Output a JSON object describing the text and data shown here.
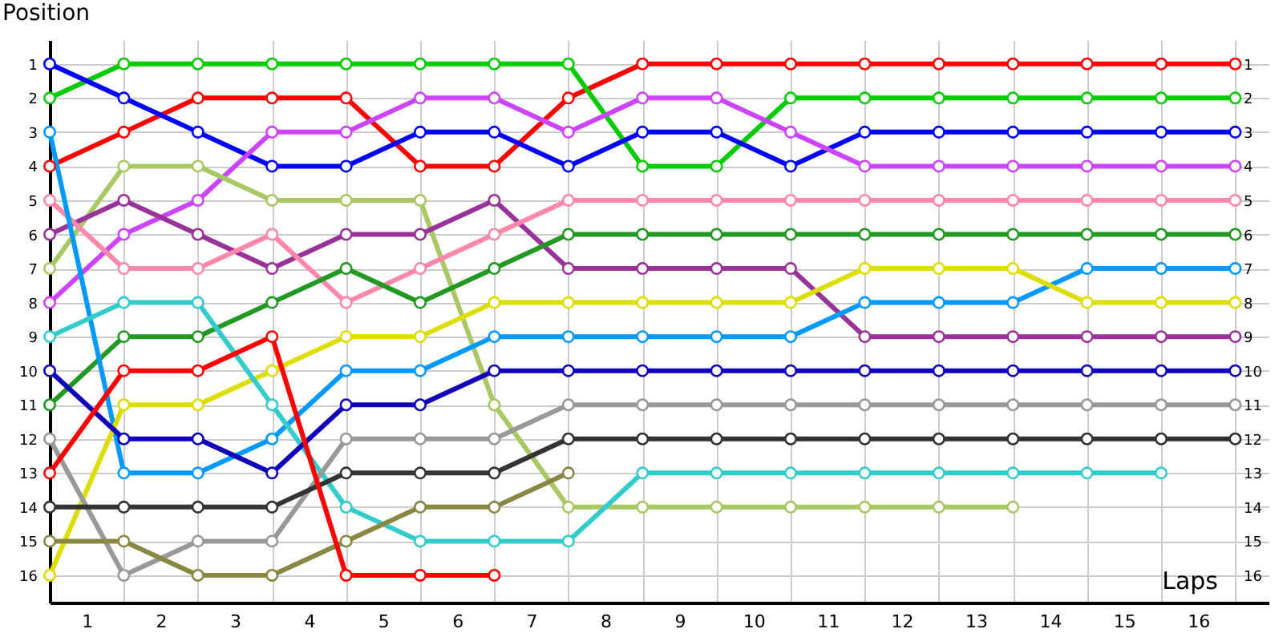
{
  "chart_data": {
    "type": "line",
    "xlabel": "Laps",
    "ylabel": "Position",
    "x": [
      0,
      1,
      2,
      3,
      4,
      5,
      6,
      7,
      8,
      9,
      10,
      11,
      12,
      13,
      14,
      15,
      16
    ],
    "xlim": [
      0,
      16.45
    ],
    "xticks": [
      {
        "value": 0,
        "label": null
      },
      {
        "value": 0.5,
        "label": "1"
      },
      {
        "value": 1,
        "label": null
      },
      {
        "value": 1.5,
        "label": "2"
      },
      {
        "value": 2,
        "label": null
      },
      {
        "value": 2.5,
        "label": "3"
      },
      {
        "value": 3,
        "label": null
      },
      {
        "value": 3.5,
        "label": "4"
      },
      {
        "value": 4,
        "label": null
      },
      {
        "value": 4.5,
        "label": "5"
      },
      {
        "value": 5,
        "label": null
      },
      {
        "value": 5.5,
        "label": "6"
      },
      {
        "value": 6,
        "label": null
      },
      {
        "value": 6.5,
        "label": "7"
      },
      {
        "value": 7,
        "label": null
      },
      {
        "value": 7.5,
        "label": "8"
      },
      {
        "value": 8,
        "label": null
      },
      {
        "value": 8.5,
        "label": "9"
      },
      {
        "value": 9,
        "label": null
      },
      {
        "value": 9.5,
        "label": "10"
      },
      {
        "value": 10,
        "label": null
      },
      {
        "value": 10.5,
        "label": "11"
      },
      {
        "value": 11,
        "label": null
      },
      {
        "value": 11.5,
        "label": "12"
      },
      {
        "value": 12,
        "label": null
      },
      {
        "value": 12.5,
        "label": "13"
      },
      {
        "value": 13,
        "label": null
      },
      {
        "value": 13.5,
        "label": "14"
      },
      {
        "value": 14,
        "label": null
      },
      {
        "value": 14.5,
        "label": "15"
      },
      {
        "value": 15,
        "label": null
      },
      {
        "value": 15.5,
        "label": "16"
      },
      {
        "value": 16,
        "label": null
      }
    ],
    "ylim": [
      16.8,
      0.3
    ],
    "yticks": [
      1,
      2,
      3,
      4,
      5,
      6,
      7,
      8,
      9,
      10,
      11,
      12,
      13,
      14,
      15,
      16
    ],
    "y2lim": [
      16.8,
      0.3
    ],
    "y2ticks": [
      1,
      2,
      3,
      4,
      5,
      6,
      7,
      8,
      9,
      10,
      11,
      12,
      13,
      14,
      15,
      16
    ],
    "grid": true,
    "marker": "circle",
    "line_style": "solid",
    "series": [
      {
        "color": "#ff0000",
        "values": [
          4,
          3,
          2,
          2,
          2,
          4,
          4,
          2,
          1,
          1,
          1,
          1,
          1,
          1,
          1,
          1,
          1
        ]
      },
      {
        "color": "#00cc00",
        "values": [
          2,
          1,
          1,
          1,
          1,
          1,
          1,
          1,
          4,
          4,
          2,
          2,
          2,
          2,
          2,
          2,
          2
        ]
      },
      {
        "color": "#0000ff",
        "values": [
          1,
          2,
          3,
          4,
          4,
          3,
          3,
          4,
          3,
          3,
          4,
          3,
          3,
          3,
          3,
          3,
          3
        ]
      },
      {
        "color": "#cc44ff",
        "values": [
          8,
          6,
          5,
          3,
          3,
          2,
          2,
          3,
          2,
          2,
          3,
          4,
          4,
          4,
          4,
          4,
          4
        ]
      },
      {
        "color": "#a8c864",
        "values": [
          7,
          4,
          4,
          5,
          5,
          5,
          11,
          14,
          14,
          14,
          14,
          14,
          14,
          14,
          null,
          null,
          null
        ]
      },
      {
        "color": "#993399",
        "values": [
          6,
          5,
          6,
          7,
          6,
          6,
          5,
          7,
          7,
          7,
          7,
          9,
          9,
          9,
          9,
          9,
          9
        ]
      },
      {
        "color": "#ff88aa",
        "values": [
          5,
          7,
          7,
          6,
          8,
          7,
          6,
          5,
          5,
          5,
          5,
          5,
          5,
          5,
          5,
          5,
          5
        ]
      },
      {
        "color": "#229922",
        "values": [
          11,
          9,
          9,
          8,
          7,
          8,
          7,
          6,
          6,
          6,
          6,
          6,
          6,
          6,
          6,
          6,
          6
        ]
      },
      {
        "color": "#0099ff",
        "values": [
          3,
          13,
          13,
          12,
          10,
          10,
          9,
          9,
          9,
          9,
          9,
          8,
          8,
          8,
          7,
          7,
          7
        ]
      },
      {
        "color": "#dddd00",
        "values": [
          16,
          11,
          11,
          10,
          9,
          9,
          8,
          8,
          8,
          8,
          8,
          7,
          7,
          7,
          8,
          8,
          8
        ]
      },
      {
        "color": "#33cccc",
        "values": [
          9,
          8,
          8,
          11,
          14,
          15,
          15,
          15,
          13,
          13,
          13,
          13,
          13,
          13,
          13,
          13,
          null
        ]
      },
      {
        "color": "#1100bb",
        "values": [
          10,
          12,
          12,
          13,
          11,
          11,
          10,
          10,
          10,
          10,
          10,
          10,
          10,
          10,
          10,
          10,
          10
        ]
      },
      {
        "color": "#999999",
        "values": [
          12,
          16,
          15,
          15,
          12,
          12,
          12,
          11,
          11,
          11,
          11,
          11,
          11,
          11,
          11,
          11,
          11
        ]
      },
      {
        "color": "#333333",
        "values": [
          14,
          14,
          14,
          14,
          13,
          13,
          13,
          12,
          12,
          12,
          12,
          12,
          12,
          12,
          12,
          12,
          12
        ]
      },
      {
        "color": "#888844",
        "values": [
          15,
          15,
          16,
          16,
          15,
          14,
          14,
          13,
          null,
          null,
          null,
          null,
          null,
          null,
          null,
          null,
          null
        ]
      },
      {
        "color": "#ff0000",
        "values": [
          13,
          10,
          10,
          9,
          16,
          16,
          16,
          null,
          null,
          null,
          null,
          null,
          null,
          null,
          null,
          null,
          null
        ]
      }
    ]
  }
}
